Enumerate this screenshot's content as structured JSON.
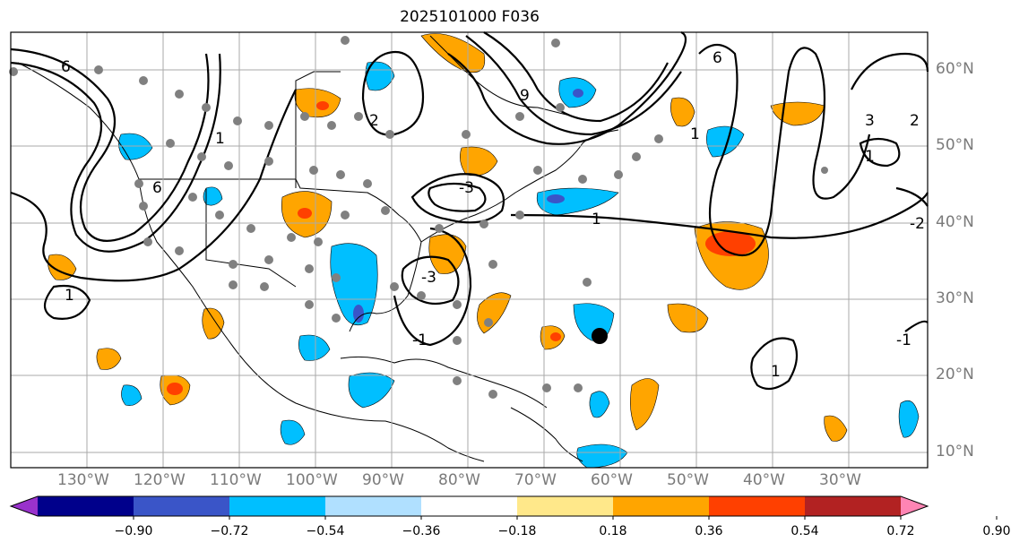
{
  "title": "2025101000 F036",
  "map": {
    "lon_labels": [
      "130°W",
      "120°W",
      "110°W",
      "100°W",
      "90°W",
      "80°W",
      "70°W",
      "60°W",
      "50°W",
      "40°W",
      "30°W"
    ],
    "lat_labels": [
      "60°N",
      "50°N",
      "40°N",
      "30°N",
      "20°N",
      "10°N"
    ],
    "contour_labels": [
      "6",
      "1",
      "1",
      "2",
      "6",
      "9",
      "1",
      "1",
      "6",
      "3",
      "2",
      "-2",
      "-1",
      "-3",
      "-1",
      "-3",
      "1",
      "1"
    ],
    "anomaly_colors": {
      "strong_neg": "#3a55c8",
      "neg": "#00bfff",
      "pos": "#ffa500",
      "strong_pos": "#ff4000"
    }
  },
  "colorbar": {
    "ticks": [
      "−0.90",
      "−0.72",
      "−0.54",
      "−0.36",
      "−0.18",
      "0.18",
      "0.36",
      "0.54",
      "0.72",
      "0.90"
    ],
    "colors": [
      "#9932cc",
      "#00008b",
      "#3a55c8",
      "#00bfff",
      "#b0e0ff",
      "#ffffff",
      "#ffe88a",
      "#ffa500",
      "#ff4000",
      "#b22222",
      "#ff85b4"
    ]
  }
}
